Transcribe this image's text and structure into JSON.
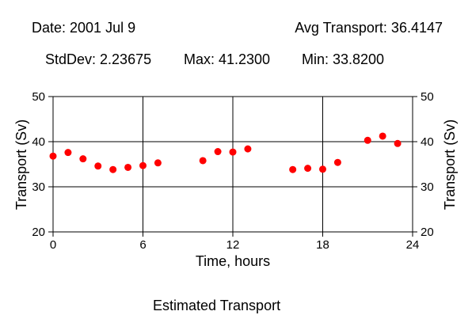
{
  "header": {
    "date": "Date: 2001 Jul 9",
    "avg": "Avg Transport: 36.4147",
    "stddev": "StdDev: 2.23675",
    "max": "Max: 41.2300",
    "min": "Min: 33.8200"
  },
  "caption": "Estimated Transport",
  "colors": {
    "marker": "#ff0000",
    "axis": "#000000",
    "background": "#ffffff"
  },
  "chart_data": {
    "type": "scatter",
    "title": "",
    "xlabel": "Time, hours",
    "ylabel": "Transport (Sv)",
    "ylabel_right": "Transport (Sv)",
    "xlim": [
      0,
      24
    ],
    "ylim": [
      20,
      50
    ],
    "xticks": [
      0,
      6,
      12,
      18,
      24
    ],
    "yticks": [
      20,
      30,
      40,
      50
    ],
    "grid": true,
    "series": [
      {
        "x": [
          0,
          1,
          2,
          3,
          4,
          5,
          6,
          7,
          10,
          11,
          12,
          13,
          16,
          17,
          18,
          19,
          21,
          22,
          23
        ],
        "y": [
          36.8,
          37.6,
          36.2,
          34.6,
          33.82,
          34.3,
          34.7,
          35.3,
          35.8,
          37.8,
          37.7,
          38.4,
          33.82,
          34.1,
          33.9,
          35.4,
          40.3,
          41.23,
          39.6
        ]
      }
    ]
  }
}
